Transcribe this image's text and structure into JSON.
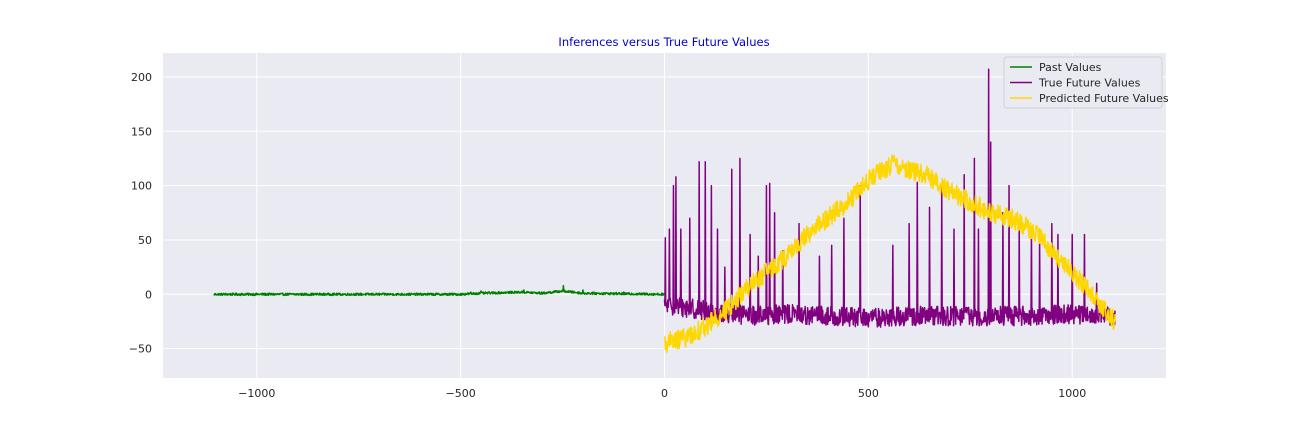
{
  "chart_data": {
    "type": "line",
    "title": "Inferences versus True Future Values",
    "title_color": "#0000cc",
    "xlabel": "",
    "ylabel": "",
    "xlim": [
      -1230,
      1230
    ],
    "ylim": [
      -77,
      222
    ],
    "xticks": [
      -1000,
      -500,
      0,
      500,
      1000
    ],
    "xtick_labels": [
      "−1000",
      "−500",
      "0",
      "500",
      "1000"
    ],
    "yticks": [
      -50,
      0,
      50,
      100,
      150,
      200
    ],
    "ytick_labels": [
      "−50",
      "0",
      "50",
      "100",
      "150",
      "200"
    ],
    "grid": true,
    "background": "#eaeaf2",
    "legend_position": "top-right",
    "series": [
      {
        "name": "Past Values",
        "color": "#008000",
        "x_range": [
          -1105,
          0
        ],
        "keypoints": [
          [
            -1105,
            0
          ],
          [
            -900,
            0
          ],
          [
            -500,
            0
          ],
          [
            -450,
            1
          ],
          [
            -350,
            2
          ],
          [
            -300,
            1
          ],
          [
            -250,
            3
          ],
          [
            -200,
            1
          ],
          [
            0,
            0
          ]
        ],
        "spikes": [
          [
            -475,
            2
          ],
          [
            -450,
            3
          ],
          [
            -345,
            4
          ],
          [
            -248,
            8
          ],
          [
            -200,
            4
          ],
          [
            -100,
            2
          ],
          [
            -5,
            1
          ]
        ],
        "noise": 1.0
      },
      {
        "name": "True Future Values",
        "color": "#800080",
        "x_range": [
          0,
          1105
        ],
        "keypoints": [
          [
            0,
            -10
          ],
          [
            50,
            -12
          ],
          [
            100,
            -15
          ],
          [
            200,
            -20
          ],
          [
            300,
            -18
          ],
          [
            400,
            -20
          ],
          [
            500,
            -22
          ],
          [
            600,
            -20
          ],
          [
            700,
            -20
          ],
          [
            800,
            -20
          ],
          [
            900,
            -20
          ],
          [
            1000,
            -18
          ],
          [
            1105,
            -20
          ]
        ],
        "spikes": [
          [
            2,
            52
          ],
          [
            12,
            60
          ],
          [
            22,
            100
          ],
          [
            28,
            108
          ],
          [
            40,
            60
          ],
          [
            62,
            70
          ],
          [
            85,
            122
          ],
          [
            100,
            122
          ],
          [
            115,
            100
          ],
          [
            130,
            60
          ],
          [
            148,
            25
          ],
          [
            165,
            115
          ],
          [
            185,
            125
          ],
          [
            210,
            55
          ],
          [
            230,
            35
          ],
          [
            250,
            100
          ],
          [
            258,
            102
          ],
          [
            270,
            75
          ],
          [
            290,
            40
          ],
          [
            330,
            65
          ],
          [
            380,
            35
          ],
          [
            410,
            45
          ],
          [
            440,
            70
          ],
          [
            480,
            100
          ],
          [
            560,
            45
          ],
          [
            600,
            65
          ],
          [
            620,
            103
          ],
          [
            650,
            80
          ],
          [
            680,
            100
          ],
          [
            710,
            60
          ],
          [
            735,
            110
          ],
          [
            760,
            125
          ],
          [
            770,
            60
          ],
          [
            795,
            207
          ],
          [
            800,
            140
          ],
          [
            830,
            75
          ],
          [
            845,
            100
          ],
          [
            870,
            65
          ],
          [
            900,
            60
          ],
          [
            920,
            50
          ],
          [
            950,
            65
          ],
          [
            965,
            55
          ],
          [
            1000,
            55
          ],
          [
            1030,
            55
          ],
          [
            1060,
            10
          ]
        ],
        "noise": 9.0
      },
      {
        "name": "Predicted Future Values",
        "color": "#ffd700",
        "x_range": [
          0,
          1105
        ],
        "keypoints": [
          [
            0,
            -45
          ],
          [
            50,
            -40
          ],
          [
            100,
            -30
          ],
          [
            150,
            -15
          ],
          [
            200,
            5
          ],
          [
            250,
            20
          ],
          [
            300,
            35
          ],
          [
            350,
            55
          ],
          [
            400,
            70
          ],
          [
            450,
            85
          ],
          [
            500,
            105
          ],
          [
            560,
            120
          ],
          [
            600,
            115
          ],
          [
            650,
            108
          ],
          [
            700,
            95
          ],
          [
            750,
            85
          ],
          [
            800,
            75
          ],
          [
            850,
            70
          ],
          [
            900,
            60
          ],
          [
            950,
            40
          ],
          [
            1000,
            20
          ],
          [
            1050,
            0
          ],
          [
            1105,
            -25
          ]
        ],
        "spikes": [],
        "noise": 9.0
      }
    ]
  }
}
